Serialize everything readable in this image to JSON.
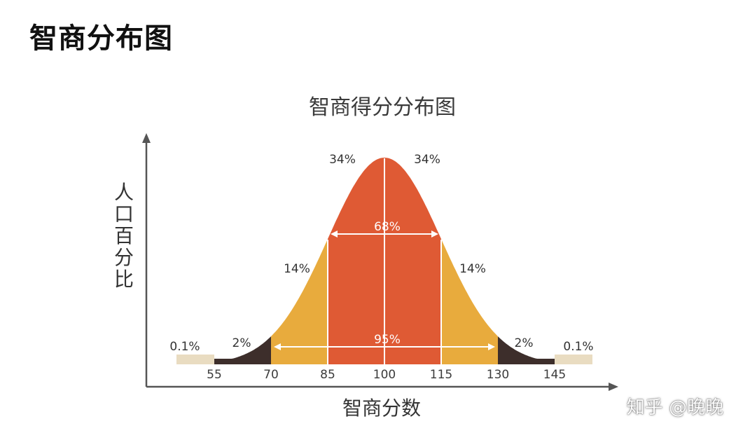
{
  "page_title": "智商分布图",
  "watermark": "知乎 @晚晚",
  "colors": {
    "center": "#df5a34",
    "mid": "#e8ab3d",
    "outer": "#3d2e2b",
    "tail": "#e9dcc1",
    "axis": "#555555",
    "marker": "#ffffff"
  },
  "chart_data": {
    "type": "area",
    "title": "智商得分分布图",
    "xlabel": "智商分数",
    "ylabel": "人口百分比",
    "mean": 100,
    "sd": 15,
    "x_ticks": [
      55,
      70,
      85,
      100,
      115,
      130,
      145
    ],
    "xlim": [
      40,
      160
    ],
    "bands": [
      {
        "name": "tail-left",
        "range": [
          45,
          55
        ],
        "percent_label": "0.1%"
      },
      {
        "name": "outer-left",
        "range": [
          55,
          70
        ],
        "percent_label": "2%"
      },
      {
        "name": "mid-left",
        "range": [
          70,
          85
        ],
        "percent_label": "14%"
      },
      {
        "name": "center-left",
        "range": [
          85,
          100
        ],
        "percent_label": "34%"
      },
      {
        "name": "center-right",
        "range": [
          100,
          115
        ],
        "percent_label": "34%"
      },
      {
        "name": "mid-right",
        "range": [
          115,
          130
        ],
        "percent_label": "14%"
      },
      {
        "name": "outer-right",
        "range": [
          130,
          145
        ],
        "percent_label": "2%"
      },
      {
        "name": "tail-right",
        "range": [
          145,
          155
        ],
        "percent_label": "0.1%"
      }
    ],
    "range_annotations": [
      {
        "label": "68%",
        "range": [
          85,
          115
        ]
      },
      {
        "label": "95%",
        "range": [
          70,
          130
        ]
      }
    ]
  }
}
